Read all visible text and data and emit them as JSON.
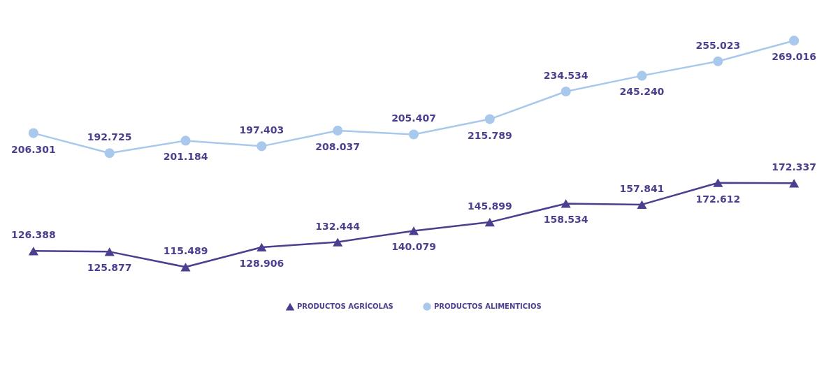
{
  "chart_data": {
    "type": "line",
    "categories": [
      null,
      null,
      null,
      null,
      null,
      null,
      null,
      null,
      null,
      null,
      null
    ],
    "series": [
      {
        "name": "PRODUCTOS AGRÍCOLAS",
        "color": "#4b3f8f",
        "marker": "triangle",
        "values": [
          126.388,
          125.877,
          115.489,
          128.906,
          132.444,
          140.079,
          145.899,
          158.534,
          157.841,
          172.612,
          172.337
        ],
        "value_labels": [
          "126.388",
          "125.877",
          "115.489",
          "128.906",
          "132.444",
          "140.079",
          "145.899",
          "158.534",
          "157.841",
          "172.612",
          "172.337"
        ]
      },
      {
        "name": "PRODUCTOS ALIMENTICIOS",
        "color": "#a9c9ec",
        "marker": "circle",
        "values": [
          206.301,
          192.725,
          201.184,
          197.403,
          208.037,
          205.407,
          215.789,
          234.534,
          245.24,
          255.023,
          269.016
        ],
        "value_labels": [
          "206.301",
          "192.725",
          "201.184",
          "197.403",
          "208.037",
          "205.407",
          "215.789",
          "234.534",
          "245.240",
          "255.023",
          "269.016"
        ]
      }
    ],
    "legend": "bottom"
  }
}
